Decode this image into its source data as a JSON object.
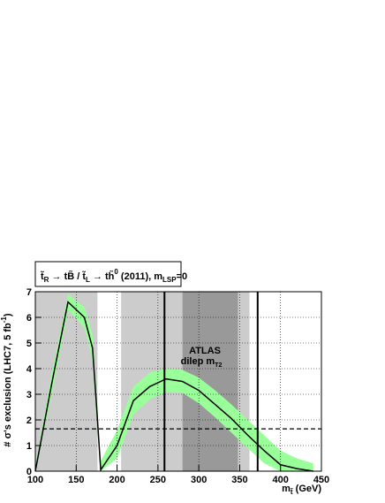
{
  "chart_data": {
    "type": "line",
    "title_parts": [
      "t̃",
      "R",
      " → tB̃ / ",
      "t̃",
      "L",
      " → th̃",
      "0",
      " (2011), m",
      "LSP",
      "=0"
    ],
    "ylabel_parts": [
      "# σ's exclusion (LHC7, 5 fb",
      "-1",
      ")"
    ],
    "xlabel_parts": [
      "m",
      "t̃",
      " (GeV)"
    ],
    "annotation": [
      "ATLAS",
      "dilep m",
      "T2"
    ],
    "xlim": [
      100,
      450
    ],
    "ylim": [
      0,
      7
    ],
    "xticks": [
      100,
      150,
      200,
      250,
      300,
      350,
      400,
      450
    ],
    "yticks": [
      0,
      1,
      2,
      3,
      4,
      5,
      6,
      7
    ],
    "grid": true,
    "shaded_regions": [
      {
        "range": [
          100,
          176
        ],
        "color": "#cccccc"
      },
      {
        "range": [
          205,
          280
        ],
        "color": "#cccccc"
      },
      {
        "range": [
          280,
          348
        ],
        "color": "#999999"
      },
      {
        "range": [
          348,
          362
        ],
        "color": "#cccccc"
      }
    ],
    "vlines": [
      258,
      372
    ],
    "hline": 1.65,
    "x": [
      100,
      120,
      140,
      160,
      170,
      175,
      180,
      200,
      220,
      240,
      260,
      280,
      300,
      320,
      340,
      360,
      380,
      400,
      420,
      440
    ],
    "series": [
      {
        "color": "#000000",
        "values": [
          0,
          3.4,
          6.6,
          6.0,
          4.8,
          2.5,
          0.05,
          1.0,
          2.75,
          3.3,
          3.6,
          3.5,
          3.15,
          2.6,
          2.05,
          1.4,
          0.8,
          0.25,
          0.1,
          0
        ]
      }
    ],
    "band": {
      "color": "#99ff99",
      "upper": [
        0.2,
        3.8,
        6.9,
        6.4,
        5.3,
        3.0,
        0.4,
        1.6,
        3.3,
        3.85,
        4.0,
        3.95,
        3.65,
        3.15,
        2.6,
        2.0,
        1.4,
        0.8,
        0.5,
        0.3
      ],
      "lower": [
        0,
        3.0,
        6.3,
        5.6,
        4.3,
        2.0,
        0,
        0.5,
        2.2,
        2.8,
        3.1,
        3.05,
        2.65,
        2.1,
        1.5,
        0.9,
        0.3,
        0,
        0,
        0
      ]
    }
  }
}
